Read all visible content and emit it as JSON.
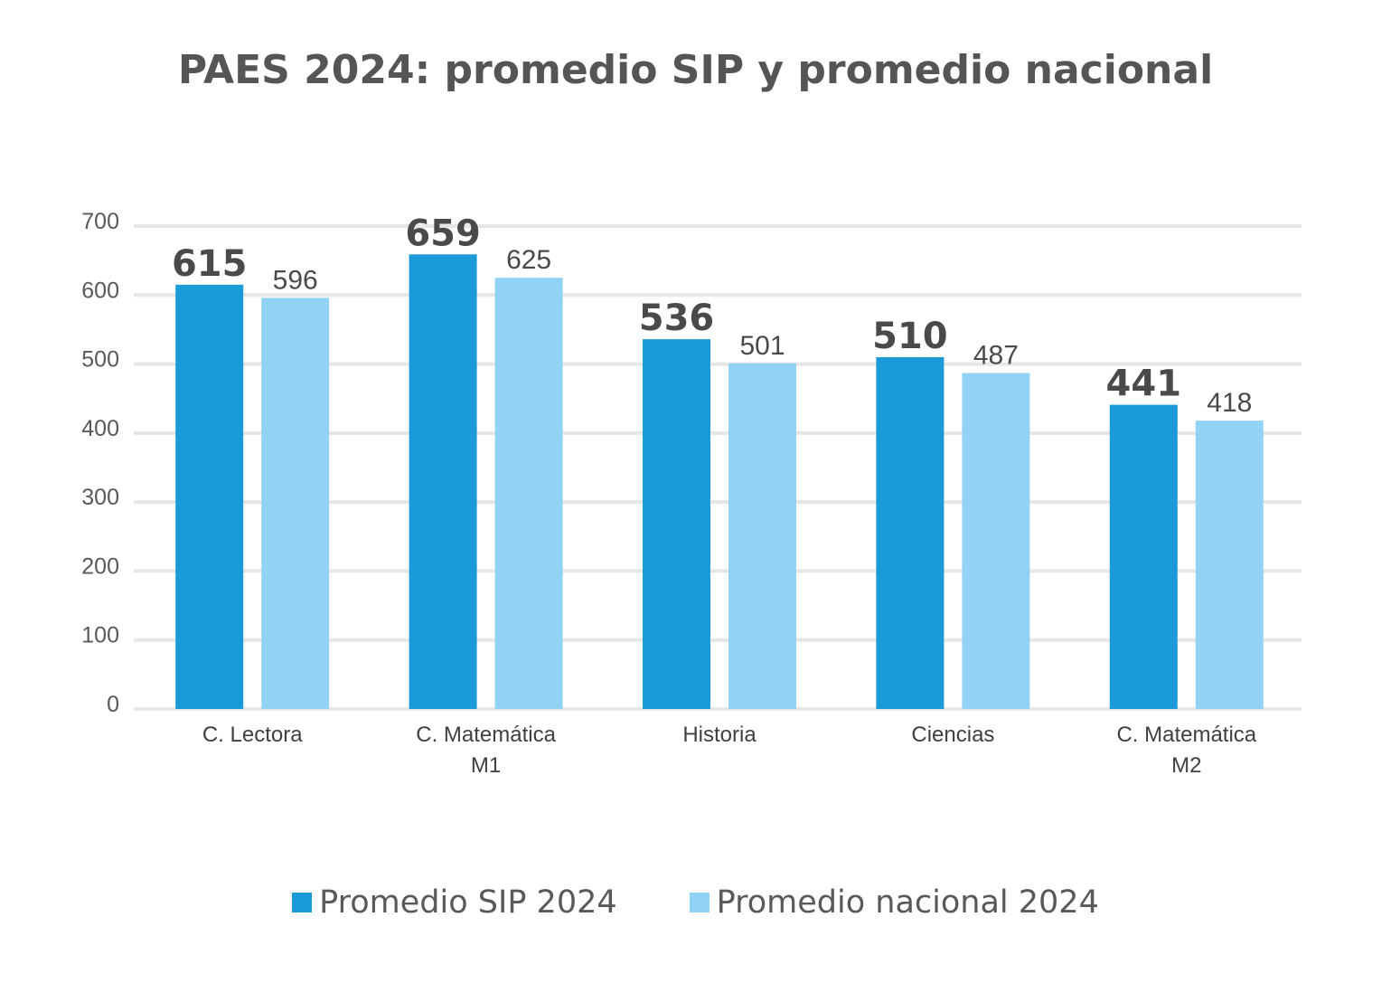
{
  "chart_data": {
    "type": "bar",
    "title": "PAES 2024: promedio SIP y promedio nacional",
    "categories": [
      [
        "C. Lectora"
      ],
      [
        "C. Matemática",
        "M1"
      ],
      [
        "Historia"
      ],
      [
        "Ciencias"
      ],
      [
        "C. Matemática",
        "M2"
      ]
    ],
    "series": [
      {
        "name": "Promedio SIP 2024",
        "values": [
          615,
          659,
          536,
          510,
          441
        ],
        "color": "#1a9bd7"
      },
      {
        "name": "Promedio nacional 2024",
        "values": [
          596,
          625,
          501,
          487,
          418
        ],
        "color": "#92d3f5"
      }
    ],
    "ylim": [
      0,
      700
    ],
    "yticks": [
      0,
      100,
      200,
      300,
      400,
      500,
      600,
      700
    ],
    "grid": true,
    "legend_position": "bottom",
    "gridline_color": "#e6e6e6"
  }
}
